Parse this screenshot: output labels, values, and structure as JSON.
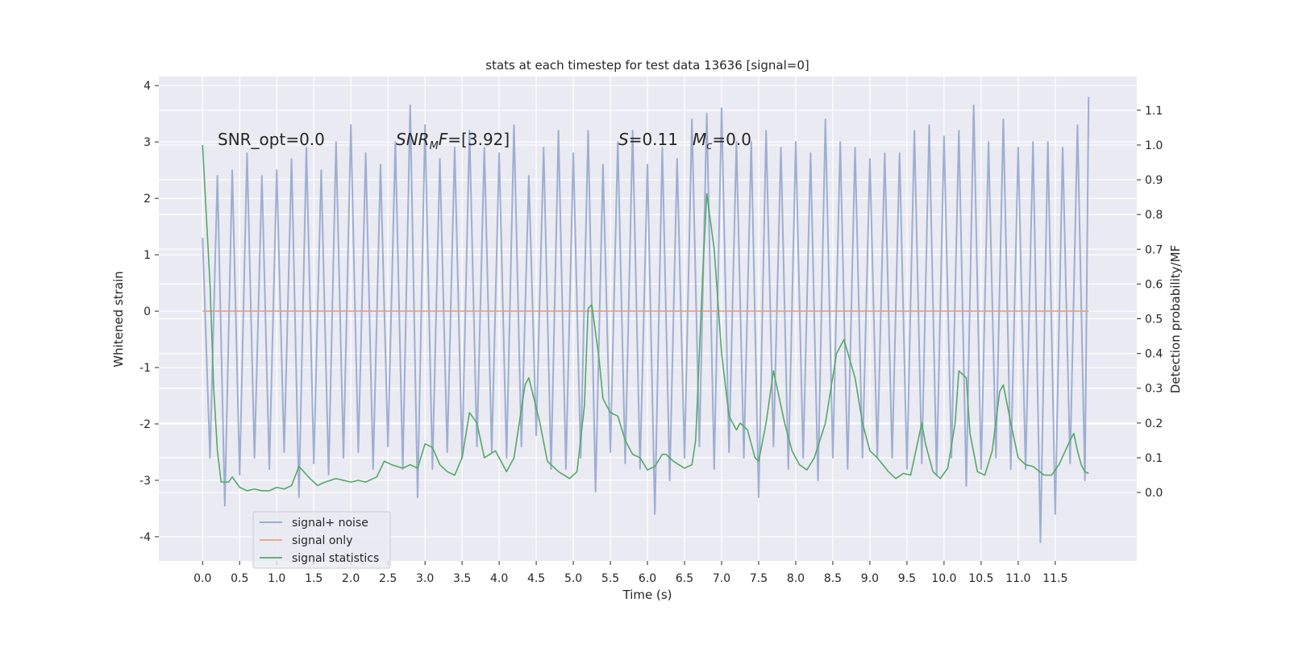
{
  "chart_data": {
    "type": "line",
    "title": "stats at each timestep for test data 13636 [signal=0]",
    "xlabel": "Time (s)",
    "ylabel": "Whitened strain",
    "y2label": "Detection probability/MF",
    "xlim": [
      -0.59,
      12.6
    ],
    "ylim": [
      -4.43,
      4.16
    ],
    "y2lim": [
      -0.197,
      1.197
    ],
    "xticks": [
      {
        "value": 0,
        "label": "0.0"
      },
      {
        "value": 0.5,
        "label": "0.5"
      },
      {
        "value": 1,
        "label": "1.0"
      },
      {
        "value": 1.5,
        "label": "1.5"
      },
      {
        "value": 2,
        "label": "2.0"
      },
      {
        "value": 2.5,
        "label": "2.5"
      },
      {
        "value": 3,
        "label": "3.0"
      },
      {
        "value": 3.5,
        "label": "3.5"
      },
      {
        "value": 4,
        "label": "4.0"
      },
      {
        "value": 4.5,
        "label": "4.5"
      },
      {
        "value": 5,
        "label": "5.0"
      },
      {
        "value": 5.5,
        "label": "5.5"
      },
      {
        "value": 6,
        "label": "6.0"
      },
      {
        "value": 6.5,
        "label": "6.5"
      },
      {
        "value": 7,
        "label": "7.0"
      },
      {
        "value": 7.5,
        "label": "7.5"
      },
      {
        "value": 8,
        "label": "8.0"
      },
      {
        "value": 8.5,
        "label": "8.5"
      },
      {
        "value": 9,
        "label": "9.0"
      },
      {
        "value": 9.5,
        "label": "9.5"
      },
      {
        "value": 10,
        "label": "10.0"
      },
      {
        "value": 10.5,
        "label": "10.5"
      },
      {
        "value": 11,
        "label": "11.0"
      },
      {
        "value": 11.5,
        "label": "11.5"
      }
    ],
    "yticks": [
      -4,
      -3,
      -2,
      -1,
      0,
      1,
      2,
      3,
      4
    ],
    "y2ticks": [
      {
        "value": 0,
        "label": "0.0"
      },
      {
        "value": 0.1,
        "label": "0.1"
      },
      {
        "value": 0.2,
        "label": "0.2"
      },
      {
        "value": 0.3,
        "label": "0.3"
      },
      {
        "value": 0.4,
        "label": "0.4"
      },
      {
        "value": 0.5,
        "label": "0.5"
      },
      {
        "value": 0.6,
        "label": "0.6"
      },
      {
        "value": 0.7,
        "label": "0.7"
      },
      {
        "value": 0.8,
        "label": "0.8"
      },
      {
        "value": 0.9,
        "label": "0.9"
      },
      {
        "value": 1,
        "label": "1.0"
      },
      {
        "value": 1.1,
        "label": "1.1"
      }
    ],
    "grid": true,
    "legend": "lower left",
    "series": [
      {
        "name": "signal+ noise",
        "color": "#8fa3cc",
        "x": [
          0,
          0.1,
          0.2,
          0.3,
          0.4,
          0.5,
          0.6,
          0.7,
          0.8,
          0.9,
          1,
          1.1,
          1.2,
          1.3,
          1.4,
          1.5,
          1.6,
          1.7,
          1.8,
          1.9,
          2,
          2.1,
          2.2,
          2.3,
          2.4,
          2.5,
          2.6,
          2.7,
          2.8,
          2.9,
          3,
          3.1,
          3.2,
          3.3,
          3.4,
          3.5,
          3.6,
          3.7,
          3.8,
          3.9,
          4,
          4.1,
          4.2,
          4.3,
          4.4,
          4.5,
          4.6,
          4.7,
          4.8,
          4.9,
          5,
          5.1,
          5.2,
          5.3,
          5.4,
          5.5,
          5.6,
          5.7,
          5.8,
          5.9,
          6,
          6.1,
          6.2,
          6.3,
          6.4,
          6.5,
          6.6,
          6.7,
          6.8,
          6.9,
          7,
          7.1,
          7.2,
          7.3,
          7.4,
          7.5,
          7.6,
          7.7,
          7.8,
          7.9,
          8,
          8.1,
          8.2,
          8.3,
          8.4,
          8.5,
          8.6,
          8.7,
          8.8,
          8.9,
          9,
          9.1,
          9.2,
          9.3,
          9.4,
          9.5,
          9.6,
          9.7,
          9.8,
          9.9,
          10,
          10.1,
          10.2,
          10.3,
          10.4,
          10.5,
          10.6,
          10.7,
          10.8,
          10.9,
          11,
          11.1,
          11.2,
          11.3,
          11.4,
          11.5,
          11.6,
          11.7,
          11.8,
          11.9,
          11.95
        ],
        "values": [
          1.3,
          -2.6,
          2.4,
          -3.45,
          2.5,
          -2.9,
          2.8,
          -2.6,
          2.4,
          -2.8,
          2.5,
          -2.5,
          2.7,
          -3.3,
          2.9,
          -2.7,
          2.5,
          -2.9,
          3.0,
          -2.6,
          3.3,
          -2.5,
          2.8,
          -2.8,
          2.6,
          -2.4,
          3.0,
          -2.8,
          3.65,
          -3.3,
          3.3,
          -2.8,
          2.7,
          -2.5,
          2.9,
          -2.6,
          3.2,
          -2.4,
          2.9,
          -2.5,
          2.8,
          -2.6,
          3.3,
          -2.4,
          2.4,
          -2.2,
          2.9,
          -2.8,
          3.2,
          -2.8,
          2.8,
          -2.6,
          3.2,
          -3.2,
          2.6,
          -2.5,
          3.0,
          -2.7,
          3.2,
          -2.8,
          2.6,
          -3.6,
          2.9,
          -3.0,
          2.7,
          -2.6,
          3.4,
          -2.4,
          3.5,
          -2.8,
          3.6,
          -2.5,
          3.0,
          -2.6,
          3.0,
          -3.3,
          3.2,
          -2.4,
          2.9,
          -2.8,
          3.0,
          -2.6,
          2.8,
          -3.0,
          3.4,
          -2.6,
          3.0,
          -2.8,
          2.9,
          -2.6,
          2.7,
          -2.6,
          2.8,
          -2.6,
          2.8,
          -2.8,
          3.2,
          -2.7,
          3.3,
          -2.9,
          3.1,
          -2.6,
          3.2,
          -3.1,
          3.65,
          -2.8,
          3.0,
          -2.6,
          3.4,
          -2.8,
          2.9,
          -2.8,
          3.0,
          -4.1,
          3.0,
          -3.6,
          2.9,
          -2.7,
          3.3,
          -3.0,
          3.8
        ]
      },
      {
        "name": "signal only",
        "color": "#e8a07c",
        "x": [
          0,
          11.95
        ],
        "values": [
          0,
          0
        ]
      },
      {
        "name": "signal statistics",
        "color": "#55a868",
        "axis": "y2",
        "x": [
          0,
          0.1,
          0.15,
          0.2,
          0.25,
          0.35,
          0.4,
          0.5,
          0.6,
          0.7,
          0.8,
          0.9,
          1.0,
          1.1,
          1.2,
          1.3,
          1.45,
          1.55,
          1.65,
          1.8,
          2.0,
          2.1,
          2.2,
          2.35,
          2.45,
          2.55,
          2.7,
          2.8,
          2.9,
          3.0,
          3.1,
          3.2,
          3.3,
          3.4,
          3.5,
          3.6,
          3.7,
          3.8,
          3.95,
          4.1,
          4.2,
          4.35,
          4.4,
          4.55,
          4.65,
          4.8,
          4.95,
          5.05,
          5.15,
          5.2,
          5.25,
          5.35,
          5.4,
          5.5,
          5.6,
          5.7,
          5.8,
          5.9,
          6.0,
          6.1,
          6.2,
          6.25,
          6.35,
          6.5,
          6.6,
          6.65,
          6.75,
          6.8,
          6.9,
          7.0,
          7.1,
          7.2,
          7.25,
          7.35,
          7.45,
          7.5,
          7.6,
          7.7,
          7.85,
          7.95,
          8.05,
          8.15,
          8.25,
          8.4,
          8.55,
          8.65,
          8.8,
          8.9,
          9.0,
          9.1,
          9.25,
          9.35,
          9.45,
          9.55,
          9.6,
          9.7,
          9.75,
          9.85,
          9.95,
          10.05,
          10.15,
          10.2,
          10.3,
          10.35,
          10.45,
          10.55,
          10.65,
          10.75,
          10.8,
          10.9,
          11.0,
          11.1,
          11.2,
          11.35,
          11.45,
          11.55,
          11.7,
          11.75,
          11.8,
          11.85,
          11.9,
          11.95
        ],
        "values": [
          1.0,
          0.6,
          0.3,
          0.12,
          0.03,
          0.03,
          0.045,
          0.015,
          0.005,
          0.01,
          0.005,
          0.005,
          0.015,
          0.01,
          0.02,
          0.075,
          0.04,
          0.02,
          0.03,
          0.04,
          0.03,
          0.035,
          0.03,
          0.045,
          0.09,
          0.08,
          0.07,
          0.08,
          0.07,
          0.14,
          0.13,
          0.08,
          0.06,
          0.05,
          0.1,
          0.23,
          0.2,
          0.1,
          0.12,
          0.06,
          0.1,
          0.31,
          0.33,
          0.2,
          0.09,
          0.06,
          0.04,
          0.06,
          0.25,
          0.53,
          0.54,
          0.38,
          0.27,
          0.23,
          0.22,
          0.15,
          0.11,
          0.1,
          0.065,
          0.075,
          0.11,
          0.11,
          0.09,
          0.07,
          0.08,
          0.15,
          0.65,
          0.86,
          0.7,
          0.4,
          0.22,
          0.18,
          0.2,
          0.18,
          0.1,
          0.09,
          0.2,
          0.35,
          0.2,
          0.12,
          0.08,
          0.065,
          0.1,
          0.2,
          0.4,
          0.44,
          0.33,
          0.2,
          0.12,
          0.1,
          0.06,
          0.04,
          0.055,
          0.05,
          0.1,
          0.2,
          0.14,
          0.06,
          0.04,
          0.07,
          0.2,
          0.35,
          0.33,
          0.17,
          0.06,
          0.05,
          0.12,
          0.29,
          0.31,
          0.2,
          0.1,
          0.08,
          0.075,
          0.05,
          0.05,
          0.08,
          0.15,
          0.17,
          0.12,
          0.08,
          0.06,
          0.055
        ]
      }
    ],
    "annotations": [
      [
        {
          "text": "SNR_opt=0.0",
          "style": "normal"
        }
      ],
      [
        {
          "text": "SNR",
          "style": "italic"
        },
        {
          "text": "M",
          "style": "italic-sub"
        },
        {
          "text": "F",
          "style": "italic"
        },
        {
          "text": "=[3.92]",
          "style": "normal"
        }
      ],
      [
        {
          "text": "S",
          "style": "italic"
        },
        {
          "text": "=0.11",
          "style": "normal"
        }
      ],
      [
        {
          "text": "M",
          "style": "italic"
        },
        {
          "text": "c",
          "style": "italic-sub"
        },
        {
          "text": "=0.0",
          "style": "normal"
        }
      ]
    ]
  }
}
